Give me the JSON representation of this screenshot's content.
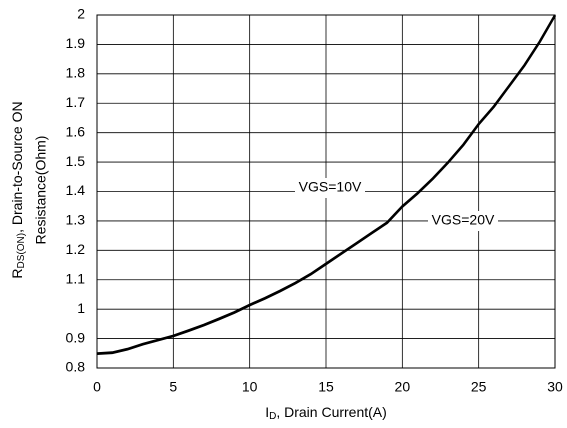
{
  "chart_data": {
    "type": "line",
    "ylabel_parts": {
      "main": "R",
      "sub": "DS(ON)",
      "rest": ", Drain-to-Source ON"
    },
    "ylabel_line2": "Resistance(Ohm)",
    "xlabel_parts": {
      "main": "I",
      "sub": "D",
      "rest": ", Drain Current(A)"
    },
    "x": [
      0,
      1,
      2,
      3,
      4,
      5,
      6,
      7,
      8,
      9,
      10,
      11,
      12,
      13,
      14,
      15,
      16,
      17,
      18,
      19,
      20,
      21,
      22,
      23,
      24,
      25,
      26,
      27,
      28,
      29,
      30
    ],
    "series": [
      {
        "name": "VGS=10V",
        "color": "#000000",
        "values": [
          0.85,
          0.853,
          0.865,
          0.882,
          0.896,
          0.91,
          0.928,
          0.947,
          0.968,
          0.99,
          1.015,
          1.038,
          1.063,
          1.09,
          1.12,
          1.155,
          1.19,
          1.225,
          1.26,
          1.295,
          1.35,
          1.395,
          1.445,
          1.5,
          1.56,
          1.63,
          1.69,
          1.76,
          1.83,
          1.91,
          2.0
        ]
      },
      {
        "name": "VGS=20V",
        "color": "#000000",
        "values": [
          0.848,
          0.851,
          0.863,
          0.88,
          0.894,
          0.908,
          0.926,
          0.945,
          0.966,
          0.988,
          1.013,
          1.036,
          1.061,
          1.088,
          1.118,
          1.153,
          1.188,
          1.223,
          1.258,
          1.293,
          1.348,
          1.393,
          1.443,
          1.498,
          1.558,
          1.628,
          1.688,
          1.758,
          1.828,
          1.908,
          1.998
        ]
      }
    ],
    "xlim": [
      0,
      30
    ],
    "xticks": [
      0,
      5,
      10,
      15,
      20,
      25,
      30
    ],
    "ylim": [
      0.8,
      2
    ],
    "yticks": [
      0.8,
      0.9,
      1,
      1.1,
      1.2,
      1.3,
      1.4,
      1.5,
      1.6,
      1.7,
      1.8,
      1.9,
      2
    ],
    "grid": true
  }
}
